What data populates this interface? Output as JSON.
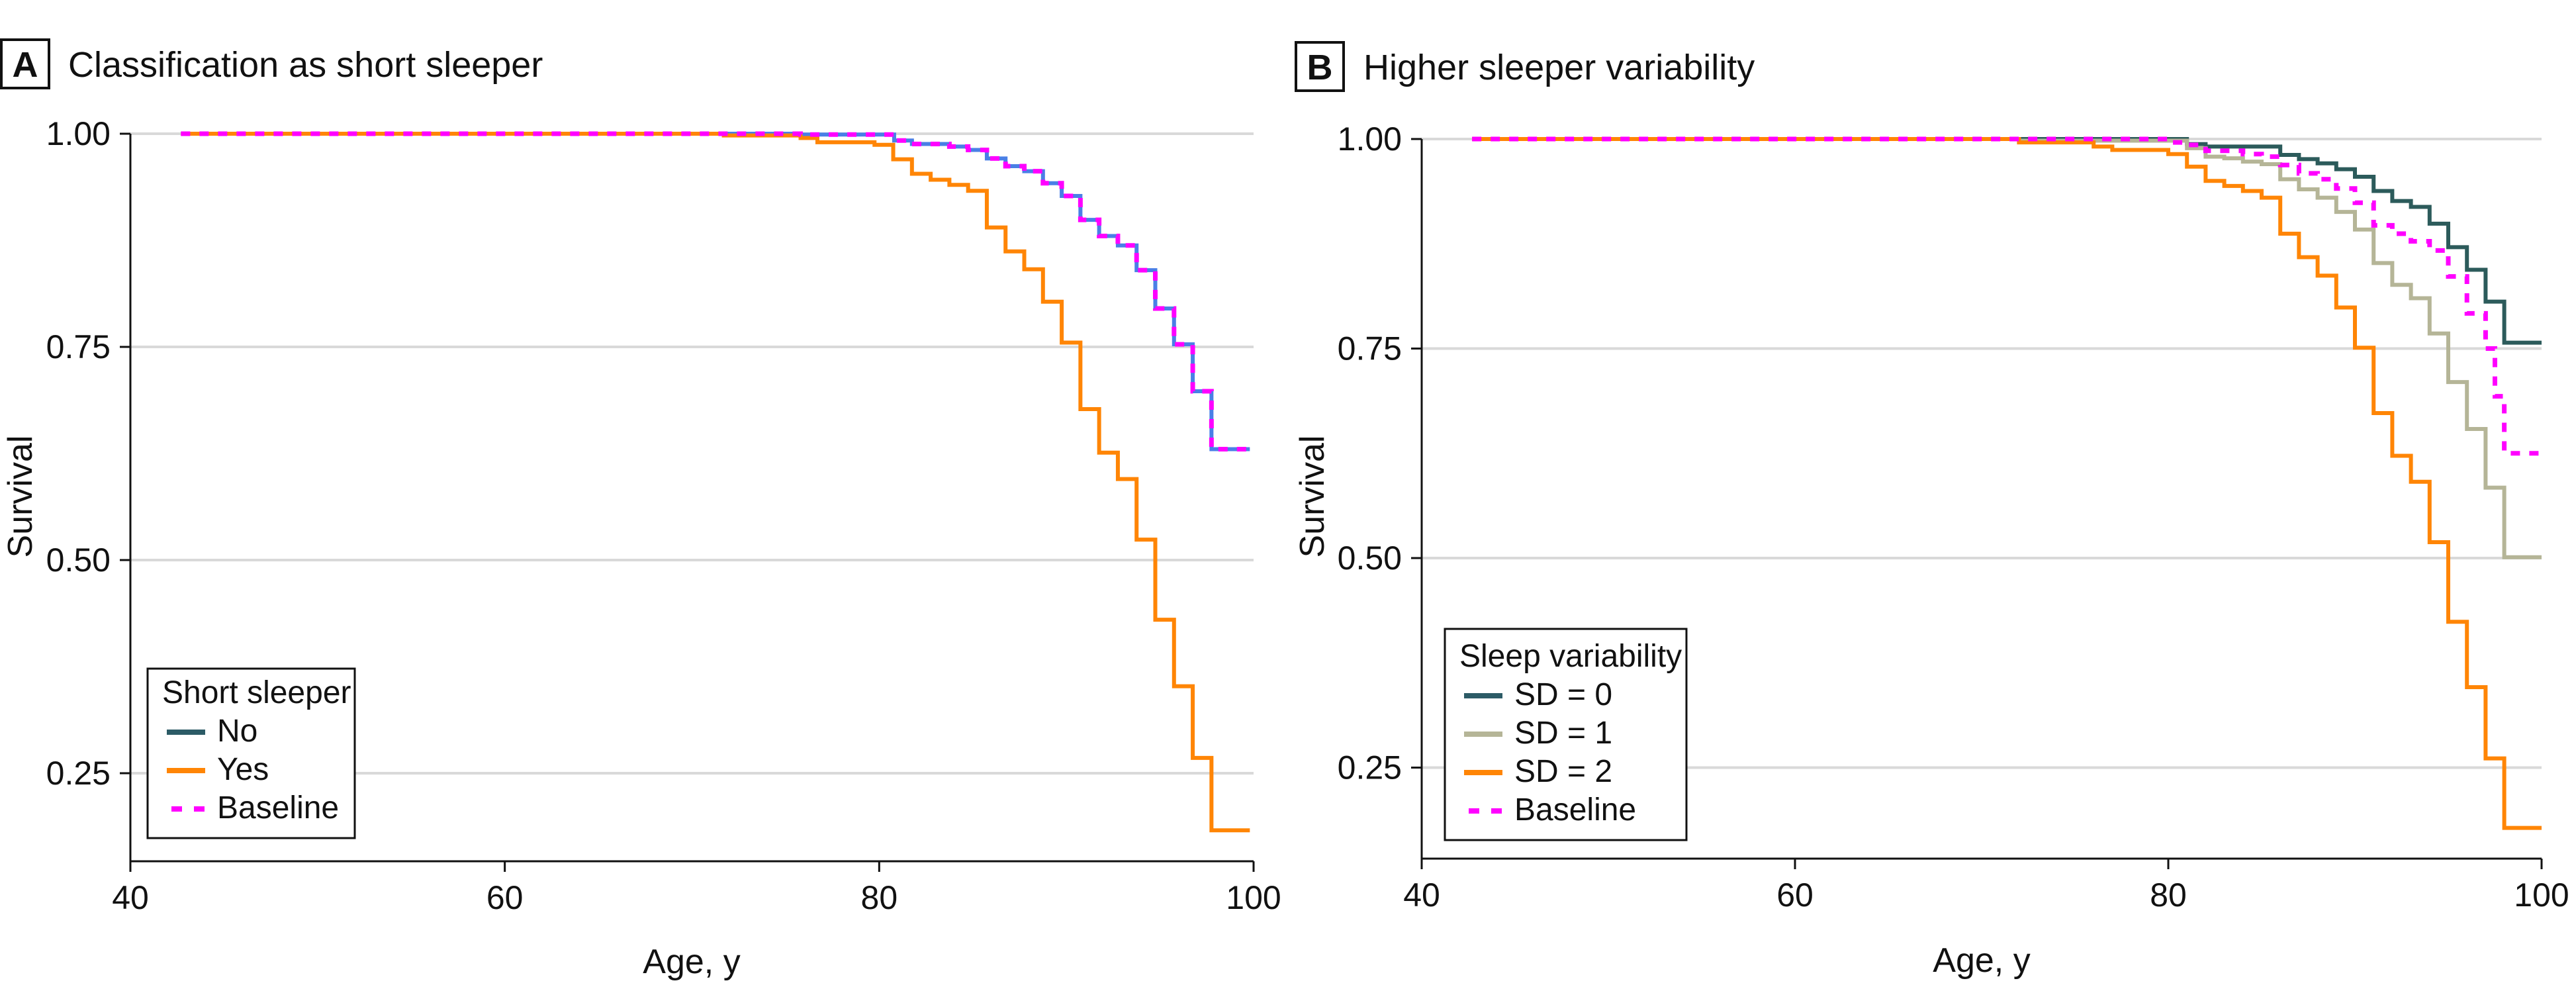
{
  "chart_data": [
    {
      "type": "line",
      "panel_label": "A",
      "title": "Classification as short sleeper",
      "xlabel": "Age, y",
      "ylabel": "Survival",
      "xlim": [
        40,
        100
      ],
      "ylim": [
        0.147,
        1.0
      ],
      "xticks": [
        "40",
        "60",
        "80",
        "100"
      ],
      "xtick_values": [
        40,
        60,
        80,
        100
      ],
      "yticks": [
        "0.25",
        "0.50",
        "0.75",
        "1.00"
      ],
      "ytick_values": [
        0.25,
        0.5,
        0.75,
        1.0
      ],
      "grid": "horizontal",
      "legend": {
        "title": "Short sleeper",
        "placement": "bottom-left"
      },
      "x_end": 99.8,
      "series": [
        {
          "name": "No",
          "color": "#4a7fe6",
          "legend_color": "#2c5b66",
          "dash": false,
          "points": [
            [
              42.7,
              1
            ],
            [
              75.8,
              0.999
            ],
            [
              80.8,
              0.992
            ],
            [
              81.75,
              0.988
            ],
            [
              83.75,
              0.985
            ],
            [
              84.75,
              0.981
            ],
            [
              85.75,
              0.971
            ],
            [
              86.75,
              0.962
            ],
            [
              87.75,
              0.956
            ],
            [
              88.75,
              0.942
            ],
            [
              89.75,
              0.927
            ],
            [
              90.75,
              0.899
            ],
            [
              91.75,
              0.88
            ],
            [
              92.75,
              0.869
            ],
            [
              93.75,
              0.84
            ],
            [
              94.75,
              0.795
            ],
            [
              95.75,
              0.753
            ],
            [
              96.75,
              0.698
            ],
            [
              97.75,
              0.63
            ]
          ]
        },
        {
          "name": "Yes",
          "color": "#ff8505",
          "legend_color": "#ff8505",
          "dash": false,
          "points": [
            [
              42.7,
              1
            ],
            [
              71.7,
              0.998
            ],
            [
              75.8,
              0.995
            ],
            [
              76.7,
              0.99
            ],
            [
              79.75,
              0.987
            ],
            [
              80.75,
              0.97
            ],
            [
              81.75,
              0.953
            ],
            [
              82.75,
              0.946
            ],
            [
              83.75,
              0.94
            ],
            [
              84.75,
              0.933
            ],
            [
              85.75,
              0.89
            ],
            [
              86.75,
              0.862
            ],
            [
              87.75,
              0.841
            ],
            [
              88.75,
              0.803
            ],
            [
              89.75,
              0.755
            ],
            [
              90.75,
              0.677
            ],
            [
              91.75,
              0.626
            ],
            [
              92.75,
              0.595
            ],
            [
              93.75,
              0.524
            ],
            [
              94.75,
              0.43
            ],
            [
              95.75,
              0.352
            ],
            [
              96.75,
              0.268
            ],
            [
              97.75,
              0.183
            ]
          ]
        },
        {
          "name": "Baseline",
          "color": "#ff00ff",
          "legend_color": "#ff00ff",
          "dash": true,
          "points": [
            [
              42.7,
              1
            ],
            [
              75.8,
              0.999
            ],
            [
              80.8,
              0.992
            ],
            [
              81.75,
              0.988
            ],
            [
              83.75,
              0.985
            ],
            [
              84.75,
              0.981
            ],
            [
              85.75,
              0.971
            ],
            [
              86.75,
              0.962
            ],
            [
              87.75,
              0.956
            ],
            [
              88.75,
              0.942
            ],
            [
              89.75,
              0.927
            ],
            [
              90.75,
              0.899
            ],
            [
              91.75,
              0.88
            ],
            [
              92.75,
              0.869
            ],
            [
              93.75,
              0.84
            ],
            [
              94.75,
              0.795
            ],
            [
              95.75,
              0.753
            ],
            [
              96.75,
              0.698
            ],
            [
              97.75,
              0.63
            ]
          ]
        }
      ]
    },
    {
      "type": "line",
      "panel_label": "B",
      "title": "Higher sleeper variability",
      "xlabel": "Age, y",
      "ylabel": "Survival",
      "xlim": [
        40,
        100
      ],
      "ylim": [
        0.147,
        1.0
      ],
      "xticks": [
        "40",
        "60",
        "80",
        "100"
      ],
      "xtick_values": [
        40,
        60,
        80,
        100
      ],
      "yticks": [
        "0.25",
        "0.50",
        "0.75",
        "1.00"
      ],
      "ytick_values": [
        0.25,
        0.5,
        0.75,
        1.0
      ],
      "grid": "horizontal",
      "legend": {
        "title": "Sleep variability",
        "placement": "bottom-left"
      },
      "x_end": 100,
      "series": [
        {
          "name": "SD = 0",
          "color": "#2c5b5b",
          "legend_color": "#2c5b66",
          "dash": false,
          "points": [
            [
              42.7,
              1
            ],
            [
              81,
              0.994
            ],
            [
              82,
              0.991
            ],
            [
              86,
              0.981
            ],
            [
              87,
              0.976
            ],
            [
              88,
              0.971
            ],
            [
              89,
              0.964
            ],
            [
              90,
              0.955
            ],
            [
              91,
              0.938
            ],
            [
              92,
              0.926
            ],
            [
              93,
              0.919
            ],
            [
              94,
              0.899
            ],
            [
              95,
              0.871
            ],
            [
              96,
              0.844
            ],
            [
              97,
              0.806
            ],
            [
              98,
              0.757
            ]
          ]
        },
        {
          "name": "SD = 1",
          "color": "#b5b597",
          "legend_color": "#b5b597",
          "dash": false,
          "points": [
            [
              42.7,
              1
            ],
            [
              72,
              0.998
            ],
            [
              81,
              0.989
            ],
            [
              82,
              0.979
            ],
            [
              83,
              0.977
            ],
            [
              84,
              0.973
            ],
            [
              85,
              0.97
            ],
            [
              86,
              0.952
            ],
            [
              87,
              0.94
            ],
            [
              88,
              0.93
            ],
            [
              89,
              0.913
            ],
            [
              90,
              0.892
            ],
            [
              91,
              0.852
            ],
            [
              92,
              0.826
            ],
            [
              93,
              0.81
            ],
            [
              94,
              0.768
            ],
            [
              95,
              0.71
            ],
            [
              96,
              0.654
            ],
            [
              97,
              0.584
            ],
            [
              98,
              0.501
            ]
          ]
        },
        {
          "name": "SD = 2",
          "color": "#ff8505",
          "legend_color": "#ff8505",
          "dash": false,
          "points": [
            [
              42.7,
              1
            ],
            [
              72,
              0.996
            ],
            [
              76,
              0.991
            ],
            [
              77,
              0.987
            ],
            [
              80,
              0.982
            ],
            [
              81,
              0.967
            ],
            [
              82,
              0.95
            ],
            [
              83,
              0.944
            ],
            [
              84,
              0.938
            ],
            [
              85,
              0.93
            ],
            [
              86,
              0.887
            ],
            [
              87,
              0.859
            ],
            [
              88,
              0.837
            ],
            [
              89,
              0.799
            ],
            [
              90,
              0.751
            ],
            [
              91,
              0.673
            ],
            [
              92,
              0.622
            ],
            [
              93,
              0.591
            ],
            [
              94,
              0.519
            ],
            [
              95,
              0.424
            ],
            [
              96,
              0.346
            ],
            [
              97,
              0.261
            ],
            [
              98,
              0.178
            ]
          ]
        },
        {
          "name": "Baseline",
          "color": "#ff00ff",
          "legend_color": "#ff00ff",
          "dash": true,
          "points": [
            [
              42.7,
              1
            ],
            [
              80,
              0.996
            ],
            [
              81,
              0.993
            ],
            [
              82,
              0.986
            ],
            [
              84,
              0.982
            ],
            [
              85,
              0.979
            ],
            [
              86,
              0.969
            ],
            [
              87,
              0.959
            ],
            [
              88,
              0.952
            ],
            [
              89,
              0.941
            ],
            [
              90,
              0.924
            ],
            [
              91,
              0.897
            ],
            [
              92,
              0.887
            ],
            [
              93,
              0.878
            ],
            [
              94,
              0.867
            ],
            [
              95,
              0.836
            ],
            [
              96,
              0.792
            ],
            [
              97,
              0.75
            ],
            [
              97.5,
              0.693
            ],
            [
              98,
              0.625
            ]
          ]
        }
      ]
    }
  ]
}
